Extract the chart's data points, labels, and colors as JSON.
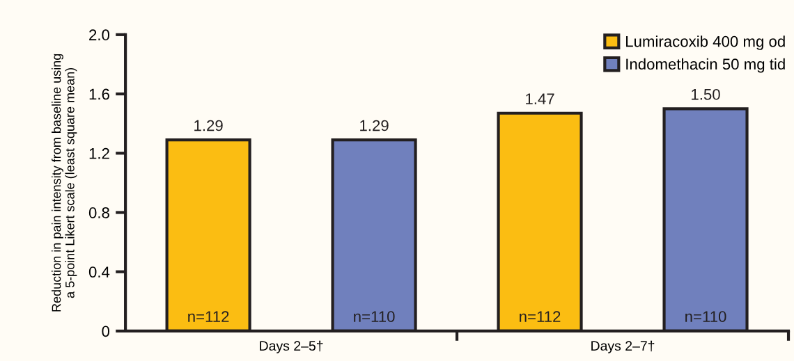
{
  "chart_data": {
    "type": "bar",
    "ylabel": "Reduction in pain intensity from baseline using\na 5-point Likert scale (least square mean)",
    "categories": [
      "Days 2–5†",
      "Days 2–7†"
    ],
    "series": [
      {
        "name": "Lumiracoxib 400 mg od",
        "color": "#fbbd12",
        "values": [
          1.29,
          1.47
        ],
        "value_labels": [
          "1.29",
          "1.47"
        ]
      },
      {
        "name": "Indomethacin 50 mg tid",
        "color": "#7080bd",
        "values": [
          1.29,
          1.5
        ],
        "value_labels": [
          "1.29",
          "1.50"
        ]
      }
    ],
    "ylim": [
      0,
      2.0
    ],
    "yticks": [
      0,
      0.4,
      0.8,
      1.2,
      1.6,
      {
        "value": 2.0,
        "label": "2.0"
      }
    ],
    "annotations": [
      "n=112",
      "n=110",
      "n=112",
      "n=110"
    ],
    "legend": "top right",
    "grid": false
  }
}
